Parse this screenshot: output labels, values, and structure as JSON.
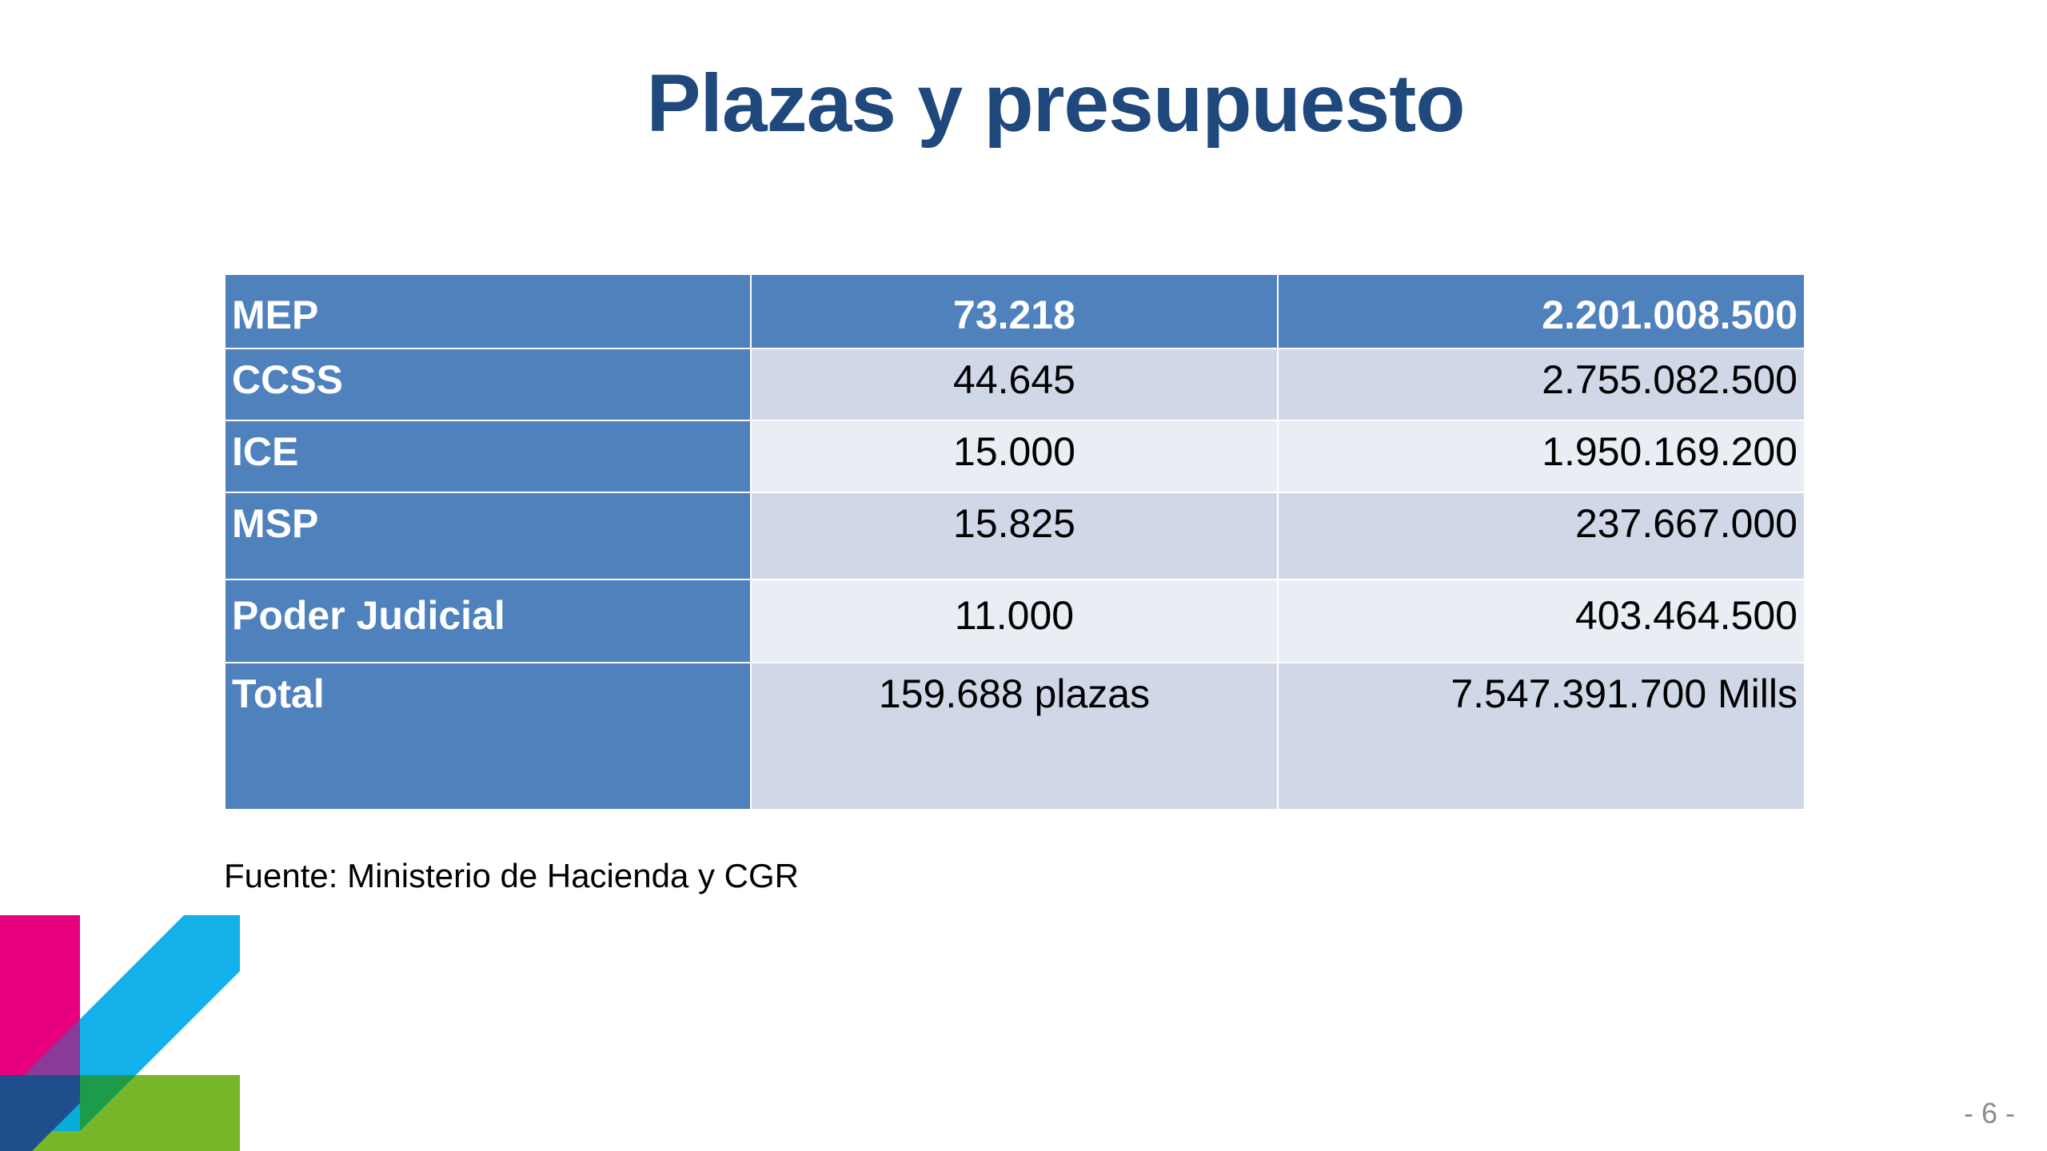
{
  "slide": {
    "title": "Plazas y presupuesto",
    "source": "Fuente: Ministerio de Hacienda y CGR",
    "page_number": "- 6 -"
  },
  "table": {
    "rows": [
      {
        "name": "MEP",
        "plazas": "73.218",
        "presupuesto": "2.201.008.500"
      },
      {
        "name": "CCSS",
        "plazas": "44.645",
        "presupuesto": "2.755.082.500"
      },
      {
        "name": "ICE",
        "plazas": "15.000",
        "presupuesto": "1.950.169.200"
      },
      {
        "name": "MSP",
        "plazas": "15.825",
        "presupuesto": "237.667.000"
      },
      {
        "name": "Poder Judicial",
        "plazas": "11.000",
        "presupuesto": "403.464.500"
      },
      {
        "name": "Total",
        "plazas": "159.688 plazas",
        "presupuesto": "7.547.391.700 Mills"
      }
    ]
  },
  "colors": {
    "title": "#1f497d",
    "header_fill": "#4f81bd",
    "band_dark": "#d0d8e8",
    "band_light": "#e9edf4",
    "logo_magenta": "#e6007e",
    "logo_cyan": "#00a9e8",
    "logo_green": "#76b82a",
    "logo_navy": "#1f4e8c"
  },
  "logo": {
    "icon": "institutional-logo-icon"
  }
}
